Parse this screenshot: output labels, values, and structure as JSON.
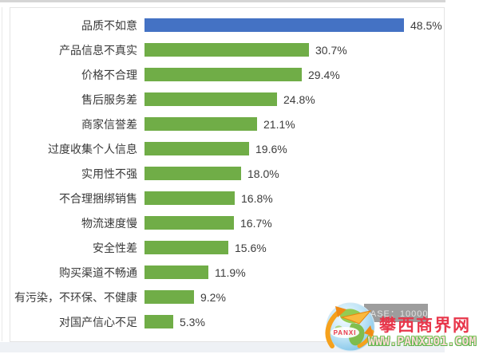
{
  "chart_data": {
    "type": "bar",
    "orientation": "horizontal",
    "title": "",
    "xlabel": "",
    "ylabel": "",
    "xlim": [
      0,
      52
    ],
    "grid": false,
    "legend": "none",
    "categories": [
      "品质不如意",
      "产品信息不真实",
      "价格不合理",
      "售后服务差",
      "商家信誉差",
      "过度收集个人信息",
      "实用性不强",
      "不合理捆绑销售",
      "物流速度慢",
      "安全性差",
      "购买渠道不畅通",
      "有污染，不环保、不健康",
      "对国产信心不足"
    ],
    "values": [
      48.5,
      30.7,
      29.4,
      24.8,
      21.1,
      19.6,
      18.0,
      16.8,
      16.7,
      15.6,
      11.9,
      9.2,
      5.3
    ],
    "value_labels": [
      "48.5%",
      "30.7%",
      "29.4%",
      "24.8%",
      "21.1%",
      "19.6%",
      "18.0%",
      "16.8%",
      "16.7%",
      "15.6%",
      "11.9%",
      "9.2%",
      "5.3%"
    ],
    "highlight_index": 0,
    "colors": {
      "highlight": "#4472c4",
      "default": "#70ad47"
    },
    "value_label_position": "end"
  },
  "watermark": {
    "badge_label": "BASE：10000",
    "site_name": "攀西商界网",
    "site_url": "WWW.PANXI01.COM",
    "logo_text": "PANXI",
    "colors": {
      "site_name": "#e8364a",
      "site_url_face": "#fbdad6",
      "site_url_outline": "#5db54a",
      "badge_bg": "#9d9d9d",
      "logo_arrow": "#f5a11d"
    }
  }
}
